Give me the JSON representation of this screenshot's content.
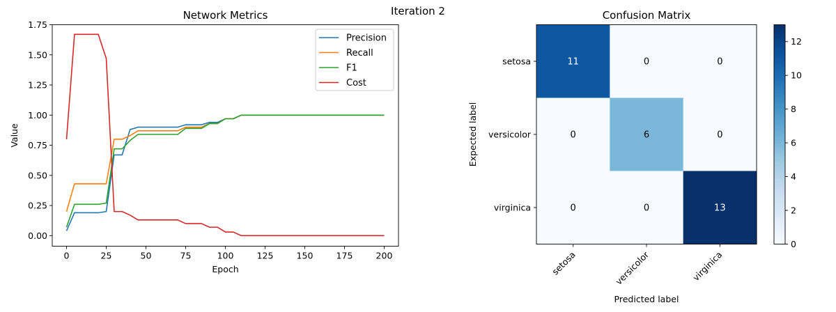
{
  "suptitle": "Iteration 2",
  "chart_data": [
    {
      "type": "line",
      "title": "Network Metrics",
      "xlabel": "Epoch",
      "ylabel": "Value",
      "xlim": [
        -9,
        209
      ],
      "ylim": [
        -0.0875,
        1.75
      ],
      "xticks": [
        "0",
        "25",
        "50",
        "75",
        "100",
        "125",
        "150",
        "175",
        "200"
      ],
      "yticks": [
        "0.00",
        "0.25",
        "0.50",
        "0.75",
        "1.00",
        "1.25",
        "1.50",
        "1.75"
      ],
      "legend_position": "top-right",
      "x": [
        0,
        5,
        10,
        15,
        20,
        25,
        30,
        35,
        40,
        45,
        50,
        55,
        60,
        65,
        70,
        75,
        80,
        85,
        90,
        95,
        100,
        105,
        110,
        115,
        120,
        125,
        130,
        135,
        140,
        145,
        150,
        155,
        160,
        165,
        170,
        175,
        180,
        185,
        190,
        195,
        200
      ],
      "series": [
        {
          "name": "Precision",
          "color": "#1f77b4",
          "values": [
            0.04,
            0.19,
            0.19,
            0.19,
            0.19,
            0.2,
            0.67,
            0.67,
            0.88,
            0.9,
            0.9,
            0.9,
            0.9,
            0.9,
            0.9,
            0.92,
            0.92,
            0.92,
            0.94,
            0.94,
            0.97,
            0.97,
            1.0,
            1.0,
            1.0,
            1.0,
            1.0,
            1.0,
            1.0,
            1.0,
            1.0,
            1.0,
            1.0,
            1.0,
            1.0,
            1.0,
            1.0,
            1.0,
            1.0,
            1.0,
            1.0
          ]
        },
        {
          "name": "Recall",
          "color": "#ff7f0e",
          "values": [
            0.2,
            0.43,
            0.43,
            0.43,
            0.43,
            0.43,
            0.8,
            0.8,
            0.83,
            0.87,
            0.87,
            0.87,
            0.87,
            0.87,
            0.87,
            0.9,
            0.9,
            0.9,
            0.93,
            0.93,
            0.97,
            0.97,
            1.0,
            1.0,
            1.0,
            1.0,
            1.0,
            1.0,
            1.0,
            1.0,
            1.0,
            1.0,
            1.0,
            1.0,
            1.0,
            1.0,
            1.0,
            1.0,
            1.0,
            1.0,
            1.0
          ]
        },
        {
          "name": "F1",
          "color": "#2ca02c",
          "values": [
            0.07,
            0.26,
            0.26,
            0.26,
            0.26,
            0.27,
            0.72,
            0.72,
            0.79,
            0.84,
            0.84,
            0.84,
            0.84,
            0.84,
            0.84,
            0.89,
            0.89,
            0.89,
            0.93,
            0.93,
            0.97,
            0.97,
            1.0,
            1.0,
            1.0,
            1.0,
            1.0,
            1.0,
            1.0,
            1.0,
            1.0,
            1.0,
            1.0,
            1.0,
            1.0,
            1.0,
            1.0,
            1.0,
            1.0,
            1.0,
            1.0
          ]
        },
        {
          "name": "Cost",
          "color": "#d62728",
          "values": [
            0.8,
            1.67,
            1.67,
            1.67,
            1.67,
            1.47,
            0.2,
            0.2,
            0.17,
            0.13,
            0.13,
            0.13,
            0.13,
            0.13,
            0.13,
            0.1,
            0.1,
            0.1,
            0.07,
            0.07,
            0.03,
            0.03,
            0.0,
            0.0,
            0.0,
            0.0,
            0.0,
            0.0,
            0.0,
            0.0,
            0.0,
            0.0,
            0.0,
            0.0,
            0.0,
            0.0,
            0.0,
            0.0,
            0.0,
            0.0,
            0.0
          ]
        }
      ]
    },
    {
      "type": "heatmap",
      "title": "Confusion Matrix",
      "xlabel": "Predicted label",
      "ylabel": "Expected label",
      "row_labels": [
        "setosa",
        "versicolor",
        "virginica"
      ],
      "col_labels": [
        "setosa",
        "versicolor",
        "virginica"
      ],
      "values": [
        [
          11,
          0,
          0
        ],
        [
          0,
          6,
          0
        ],
        [
          0,
          0,
          13
        ]
      ],
      "colormap": "Blues",
      "colorbar_ticks": [
        "0",
        "2",
        "4",
        "6",
        "8",
        "10",
        "12"
      ],
      "colorbar_range": [
        0,
        13
      ]
    }
  ]
}
